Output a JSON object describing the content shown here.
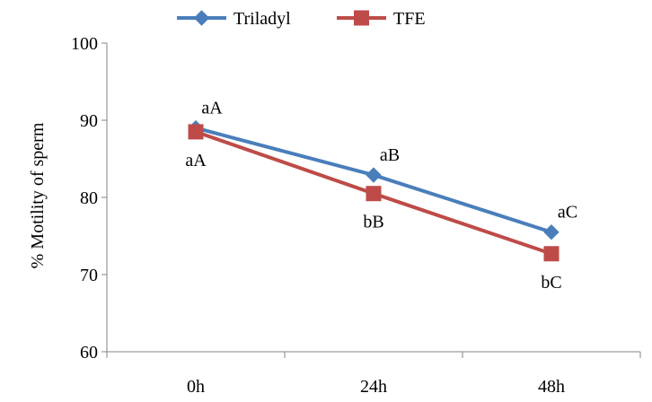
{
  "chart_data": {
    "type": "line",
    "title": "",
    "xlabel": "",
    "ylabel": "% Motility of sperm",
    "categories": [
      "0h",
      "24h",
      "48h"
    ],
    "ylim": [
      60,
      100
    ],
    "yticks": [
      60,
      70,
      80,
      90,
      100
    ],
    "grid": false,
    "legend_position": "top-center",
    "series": [
      {
        "name": "Triladyl",
        "values": [
          89.0,
          82.9,
          75.5
        ],
        "color": "#4a7ebb",
        "marker": "diamond",
        "labels": [
          "aA",
          "aB",
          "aC"
        ]
      },
      {
        "name": "TFE",
        "values": [
          88.5,
          80.5,
          72.7
        ],
        "color": "#be4b48",
        "marker": "square",
        "labels": [
          "aA",
          "bB",
          "bC"
        ]
      }
    ]
  }
}
